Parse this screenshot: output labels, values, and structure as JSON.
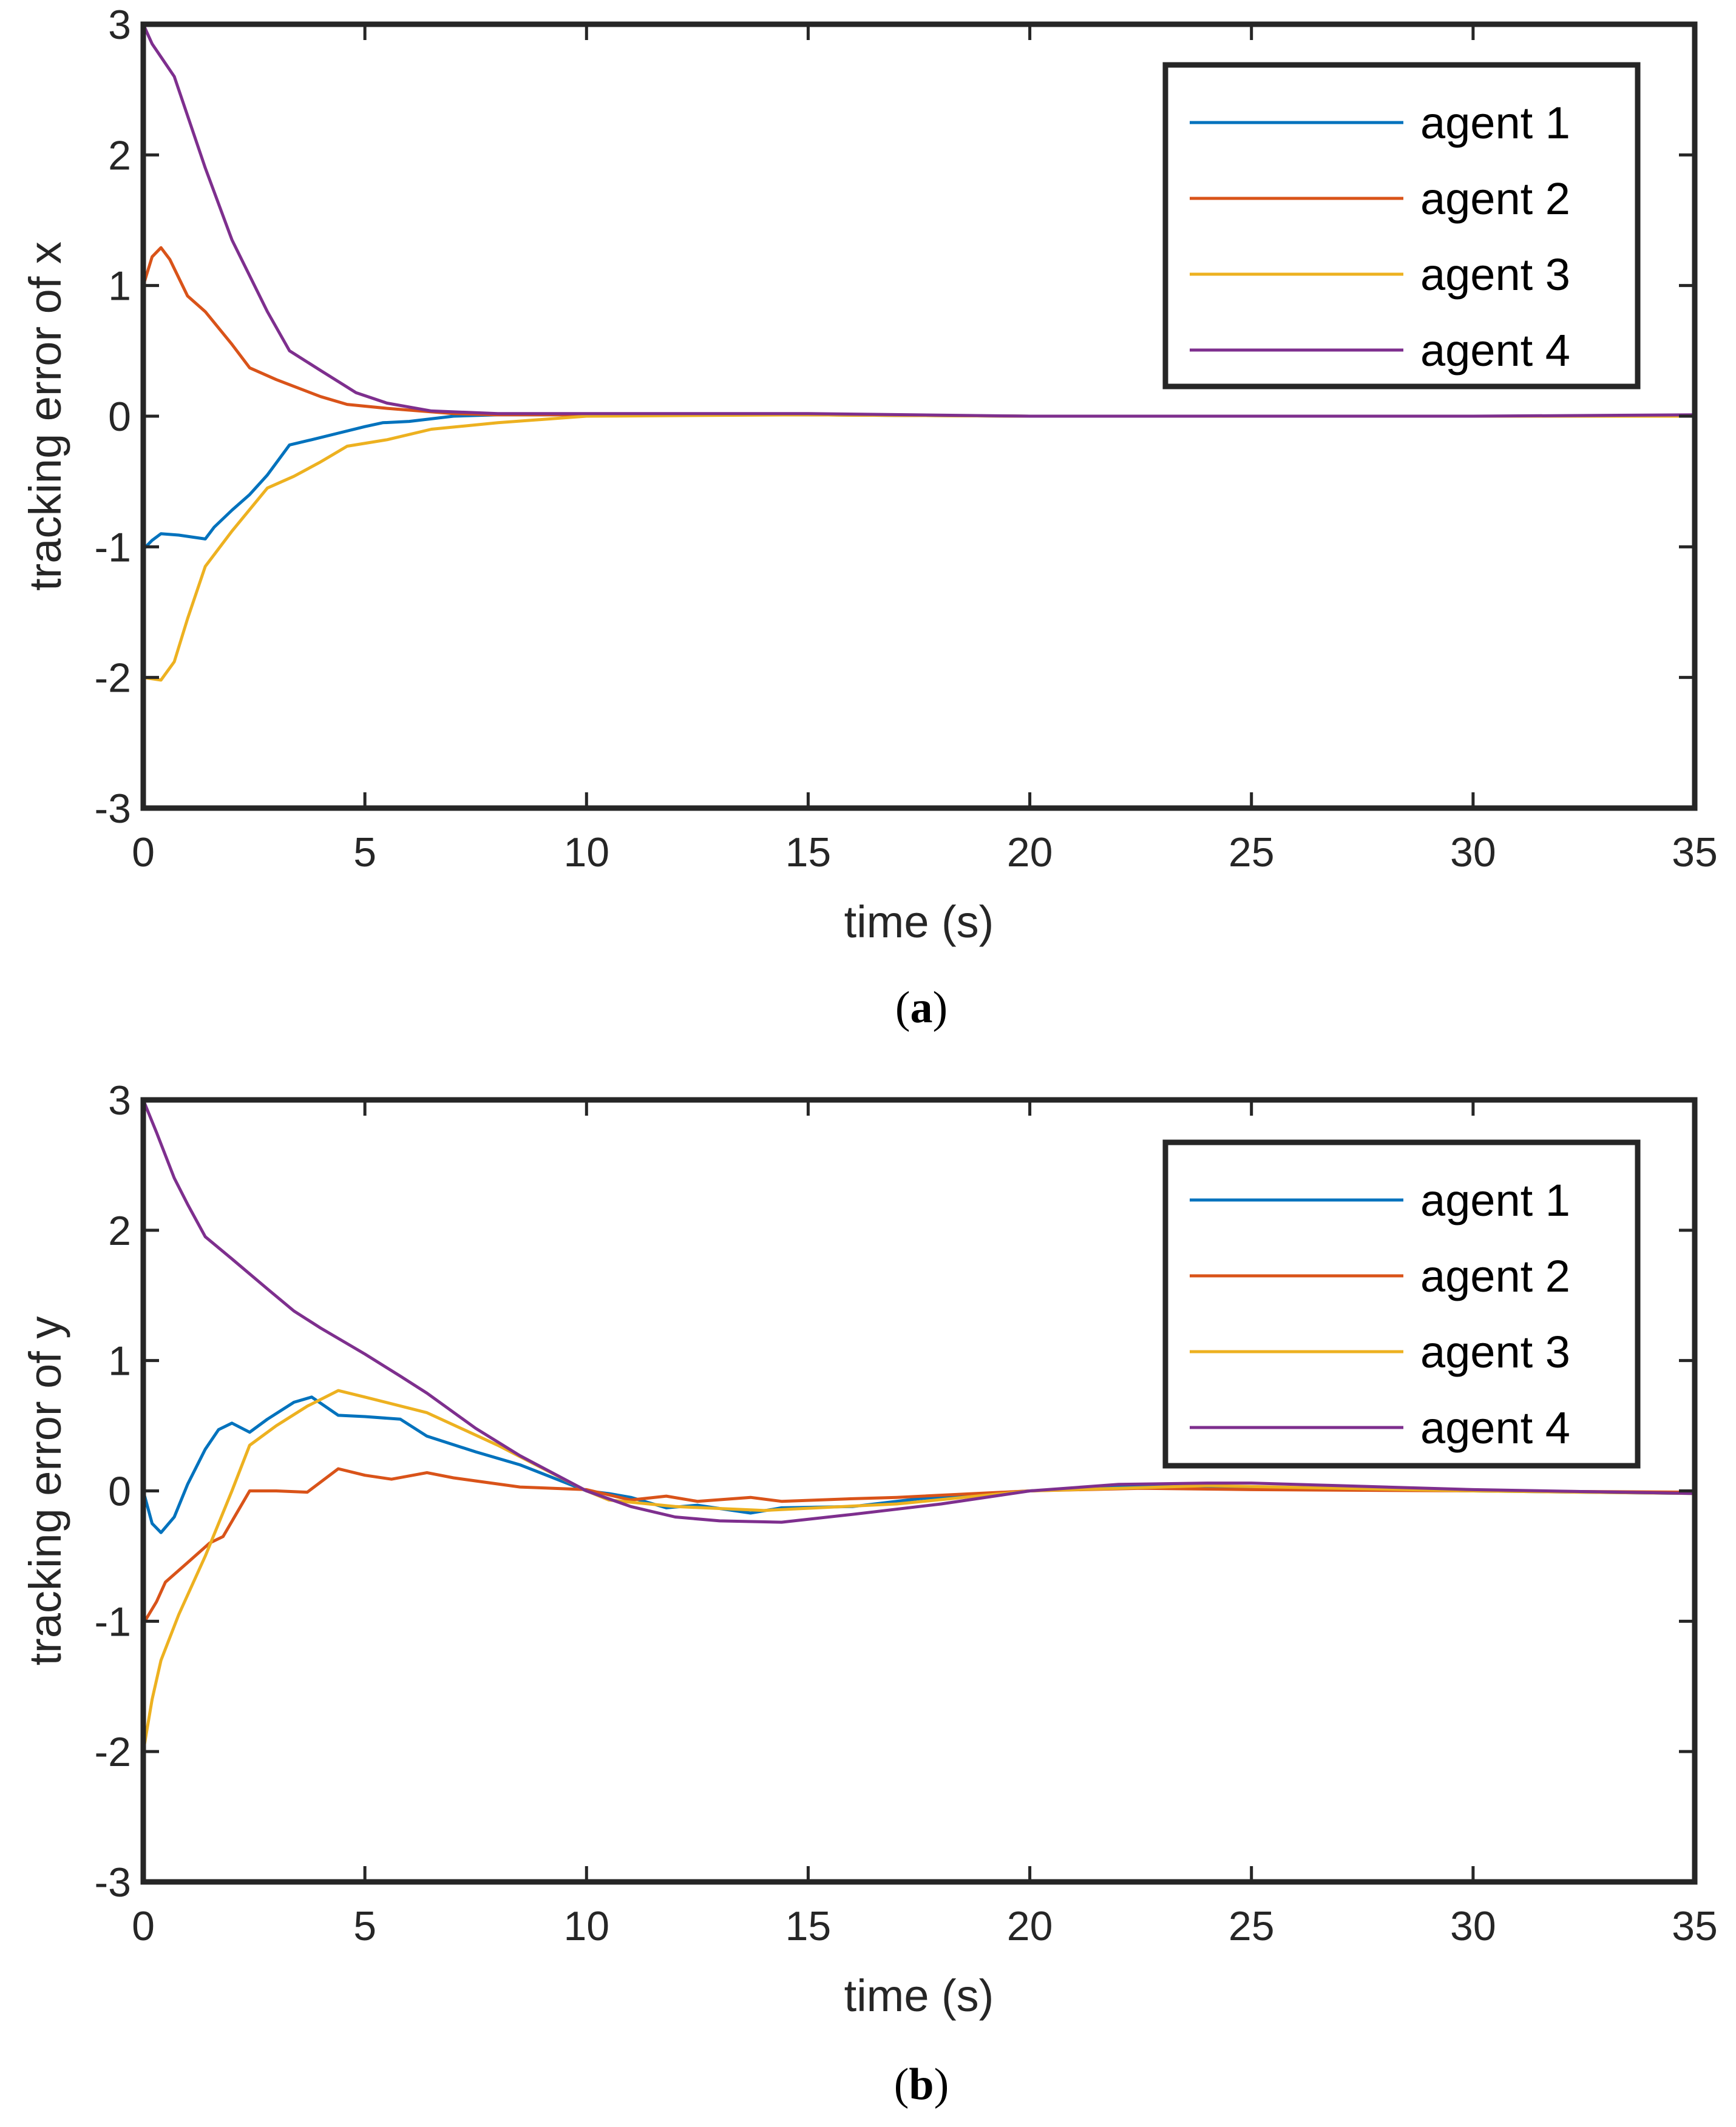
{
  "chart_data": [
    {
      "type": "line",
      "caption_open": "(",
      "caption_letter": "a",
      "caption_close": ")",
      "xlabel": "time (s)",
      "ylabel": "tracking error of x",
      "xlim": [
        0,
        35
      ],
      "ylim": [
        -3,
        3
      ],
      "xticks": [
        "0",
        "5",
        "10",
        "15",
        "20",
        "25",
        "30",
        "35"
      ],
      "yticks": [
        "3",
        "2",
        "1",
        "0",
        "-1",
        "-2",
        "-3"
      ],
      "grid": false,
      "legend_position": "top-right",
      "series": [
        {
          "name": "agent 1",
          "color": "#0072BD",
          "x": [
            0,
            0.2,
            0.4,
            0.8,
            1.4,
            1.6,
            2.0,
            2.4,
            2.8,
            3.3,
            3.8,
            4.4,
            5.0,
            5.4,
            6.0,
            7.0,
            8.0,
            10,
            15,
            20,
            25,
            30,
            35
          ],
          "y": [
            -1.02,
            -0.95,
            -0.9,
            -0.91,
            -0.94,
            -0.85,
            -0.72,
            -0.6,
            -0.45,
            -0.22,
            -0.18,
            -0.13,
            -0.08,
            -0.05,
            -0.04,
            0.0,
            0.01,
            0.01,
            0.01,
            0.0,
            0.0,
            0.0,
            0.0
          ]
        },
        {
          "name": "agent 2",
          "color": "#D95319",
          "x": [
            0,
            0.2,
            0.4,
            0.6,
            1.0,
            1.4,
            2.0,
            2.4,
            3.0,
            4.0,
            4.6,
            5.5,
            7.0,
            8.0,
            10,
            15,
            20,
            25,
            30,
            35
          ],
          "y": [
            1.0,
            1.22,
            1.29,
            1.2,
            0.92,
            0.8,
            0.55,
            0.37,
            0.28,
            0.15,
            0.09,
            0.06,
            0.02,
            0.01,
            0.01,
            0.01,
            0.0,
            0.0,
            0.0,
            0.0
          ]
        },
        {
          "name": "agent 3",
          "color": "#EDB120",
          "x": [
            0,
            0.4,
            0.7,
            1.0,
            1.4,
            2.0,
            2.8,
            3.4,
            4.0,
            4.6,
            5.5,
            6.5,
            8.0,
            10,
            15,
            20,
            25,
            30,
            35
          ],
          "y": [
            -2.0,
            -2.02,
            -1.88,
            -1.55,
            -1.15,
            -0.88,
            -0.55,
            -0.46,
            -0.35,
            -0.23,
            -0.18,
            -0.1,
            -0.05,
            0.0,
            0.01,
            0.0,
            0.0,
            0.0,
            0.0
          ]
        },
        {
          "name": "agent 4",
          "color": "#7E2F8E",
          "x": [
            0,
            0.2,
            0.4,
            0.7,
            1.0,
            1.4,
            2.0,
            2.8,
            3.3,
            4.0,
            4.8,
            5.5,
            6.5,
            8.0,
            10,
            15,
            20,
            25,
            30,
            35
          ],
          "y": [
            3.0,
            2.85,
            2.75,
            2.6,
            2.3,
            1.9,
            1.35,
            0.8,
            0.5,
            0.35,
            0.18,
            0.1,
            0.04,
            0.02,
            0.02,
            0.02,
            0.0,
            0.0,
            0.0,
            0.01
          ]
        }
      ]
    },
    {
      "type": "line",
      "caption_open": "(",
      "caption_letter": "b",
      "caption_close": ")",
      "xlabel": "time (s)",
      "ylabel": "tracking error of y",
      "xlim": [
        0,
        35
      ],
      "ylim": [
        -3,
        3
      ],
      "xticks": [
        "0",
        "5",
        "10",
        "15",
        "20",
        "25",
        "30",
        "35"
      ],
      "yticks": [
        "3",
        "2",
        "1",
        "0",
        "-1",
        "-2",
        "-3"
      ],
      "grid": false,
      "legend_position": "top-right",
      "series": [
        {
          "name": "agent 1",
          "color": "#0072BD",
          "x": [
            0,
            0.2,
            0.4,
            0.7,
            1.0,
            1.4,
            1.7,
            2.0,
            2.4,
            2.8,
            3.4,
            3.8,
            4.4,
            5.0,
            5.8,
            6.4,
            7.5,
            8.5,
            10,
            10.5,
            11,
            11.8,
            12.5,
            13.7,
            14.4,
            16,
            17.5,
            19,
            20,
            22.5,
            24,
            25,
            27,
            30,
            35
          ],
          "y": [
            0.0,
            -0.25,
            -0.32,
            -0.2,
            0.05,
            0.32,
            0.47,
            0.52,
            0.45,
            0.55,
            0.68,
            0.72,
            0.58,
            0.57,
            0.55,
            0.42,
            0.3,
            0.2,
            0.0,
            -0.02,
            -0.05,
            -0.13,
            -0.11,
            -0.17,
            -0.13,
            -0.12,
            -0.06,
            -0.02,
            0.0,
            0.04,
            0.03,
            0.02,
            0.02,
            0.0,
            -0.02
          ]
        },
        {
          "name": "agent 2",
          "color": "#D95319",
          "x": [
            0,
            0.3,
            0.5,
            1.0,
            1.5,
            1.8,
            2.4,
            3.0,
            3.7,
            4.4,
            5.0,
            5.6,
            6.4,
            7.0,
            8.5,
            10,
            11,
            11.8,
            12.5,
            13.7,
            14.4,
            16,
            17,
            20,
            22.5,
            25,
            30,
            35
          ],
          "y": [
            -1.02,
            -0.85,
            -0.7,
            -0.55,
            -0.4,
            -0.35,
            0.0,
            0.0,
            -0.01,
            0.17,
            0.12,
            0.09,
            0.14,
            0.1,
            0.03,
            0.01,
            -0.07,
            -0.04,
            -0.08,
            -0.05,
            -0.08,
            -0.06,
            -0.05,
            0.0,
            0.02,
            0.01,
            0.0,
            -0.01
          ]
        },
        {
          "name": "agent 3",
          "color": "#EDB120",
          "x": [
            0,
            0.2,
            0.4,
            0.8,
            1.4,
            2.0,
            2.4,
            3.0,
            3.7,
            4.4,
            5.0,
            6.4,
            8.0,
            10,
            10.5,
            12,
            14,
            17,
            20,
            24,
            30,
            35
          ],
          "y": [
            -2.0,
            -1.6,
            -1.3,
            -0.95,
            -0.5,
            0.0,
            0.35,
            0.5,
            0.65,
            0.77,
            0.72,
            0.6,
            0.35,
            0.0,
            -0.07,
            -0.12,
            -0.15,
            -0.1,
            0.0,
            0.04,
            0.0,
            -0.02
          ]
        },
        {
          "name": "agent 4",
          "color": "#7E2F8E",
          "x": [
            0,
            0.3,
            0.7,
            1.0,
            1.4,
            2.0,
            2.8,
            3.4,
            4.0,
            5.0,
            5.8,
            6.4,
            7.5,
            8.5,
            10,
            11,
            12,
            13,
            14.4,
            16,
            18,
            20,
            22,
            24,
            25,
            27,
            30,
            35
          ],
          "y": [
            3.0,
            2.75,
            2.4,
            2.2,
            1.95,
            1.78,
            1.55,
            1.38,
            1.25,
            1.05,
            0.88,
            0.75,
            0.48,
            0.27,
            0.0,
            -0.12,
            -0.2,
            -0.23,
            -0.24,
            -0.18,
            -0.1,
            0.0,
            0.05,
            0.06,
            0.06,
            0.04,
            0.01,
            -0.02
          ]
        }
      ]
    }
  ]
}
